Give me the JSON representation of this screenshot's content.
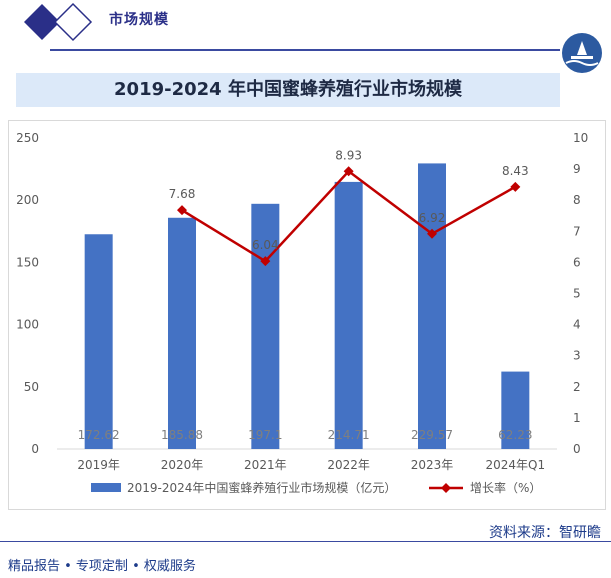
{
  "header": {
    "section_title": "市场规模"
  },
  "footer": {
    "source": "资料来源：智研瞻",
    "tagline": "精品报告 • 专项定制 • 权威服务"
  },
  "colors": {
    "bar": "#4472c4",
    "line": "#c00000",
    "title_band": "#dce9f9",
    "brand": "#2a2f88"
  },
  "chart_data": {
    "type": "bar",
    "title": "2019-2024 年中国蜜蜂养殖行业市场规模",
    "categories": [
      "2019年",
      "2020年",
      "2021年",
      "2022年",
      "2023年",
      "2024年Q1"
    ],
    "series": [
      {
        "name": "2019-2024年中国蜜蜂养殖行业市场规模（亿元）",
        "type": "bar",
        "axis": "left",
        "values": [
          172.62,
          185.88,
          197.1,
          214.71,
          229.57,
          62.23
        ],
        "labels": [
          "172.62",
          "185.88",
          "197.1",
          "214.71",
          "229.57",
          "62.23"
        ]
      },
      {
        "name": "增长率（%）",
        "type": "line",
        "axis": "right",
        "values": [
          null,
          7.68,
          6.04,
          8.93,
          6.92,
          8.43
        ],
        "labels": [
          "",
          "7.68",
          "6.04",
          "8.93",
          "6.92",
          "8.43"
        ]
      }
    ],
    "y_left": {
      "min": 0,
      "max": 250,
      "ticks": [
        "0",
        "50",
        "100",
        "150",
        "200",
        "250"
      ]
    },
    "y_right": {
      "min": 0,
      "max": 10,
      "ticks": [
        "0",
        "1",
        "2",
        "3",
        "4",
        "5",
        "6",
        "7",
        "8",
        "9",
        "10"
      ]
    },
    "grid": false,
    "legend": "bottom"
  }
}
